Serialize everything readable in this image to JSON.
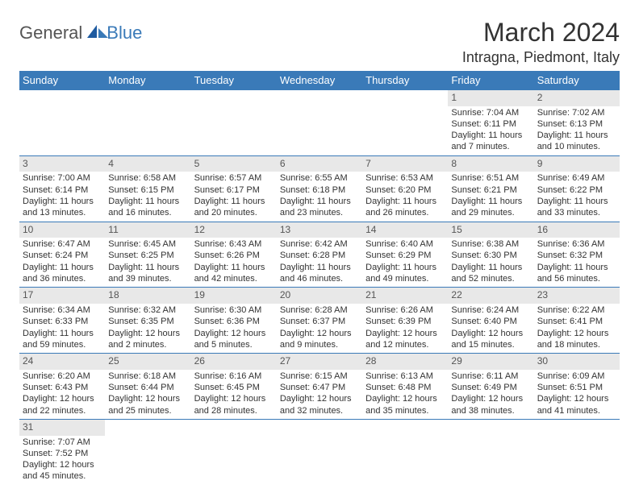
{
  "logo": {
    "part1": "General",
    "part2": "Blue"
  },
  "title": "March 2024",
  "location": "Intragna, Piedmont, Italy",
  "dayHeaders": [
    "Sunday",
    "Monday",
    "Tuesday",
    "Wednesday",
    "Thursday",
    "Friday",
    "Saturday"
  ],
  "colors": {
    "headerBg": "#3a7ab8",
    "headerText": "#ffffff",
    "daynumBg": "#e8e8e8",
    "text": "#333333",
    "border": "#3a7ab8"
  },
  "fonts": {
    "title_pt": 32,
    "location_pt": 18,
    "header_pt": 13,
    "daynum_pt": 12,
    "body_pt": 11
  },
  "weeks": [
    [
      null,
      null,
      null,
      null,
      null,
      {
        "n": "1",
        "sr": "Sunrise: 7:04 AM",
        "ss": "Sunset: 6:11 PM",
        "dl": "Daylight: 11 hours and 7 minutes."
      },
      {
        "n": "2",
        "sr": "Sunrise: 7:02 AM",
        "ss": "Sunset: 6:13 PM",
        "dl": "Daylight: 11 hours and 10 minutes."
      }
    ],
    [
      {
        "n": "3",
        "sr": "Sunrise: 7:00 AM",
        "ss": "Sunset: 6:14 PM",
        "dl": "Daylight: 11 hours and 13 minutes."
      },
      {
        "n": "4",
        "sr": "Sunrise: 6:58 AM",
        "ss": "Sunset: 6:15 PM",
        "dl": "Daylight: 11 hours and 16 minutes."
      },
      {
        "n": "5",
        "sr": "Sunrise: 6:57 AM",
        "ss": "Sunset: 6:17 PM",
        "dl": "Daylight: 11 hours and 20 minutes."
      },
      {
        "n": "6",
        "sr": "Sunrise: 6:55 AM",
        "ss": "Sunset: 6:18 PM",
        "dl": "Daylight: 11 hours and 23 minutes."
      },
      {
        "n": "7",
        "sr": "Sunrise: 6:53 AM",
        "ss": "Sunset: 6:20 PM",
        "dl": "Daylight: 11 hours and 26 minutes."
      },
      {
        "n": "8",
        "sr": "Sunrise: 6:51 AM",
        "ss": "Sunset: 6:21 PM",
        "dl": "Daylight: 11 hours and 29 minutes."
      },
      {
        "n": "9",
        "sr": "Sunrise: 6:49 AM",
        "ss": "Sunset: 6:22 PM",
        "dl": "Daylight: 11 hours and 33 minutes."
      }
    ],
    [
      {
        "n": "10",
        "sr": "Sunrise: 6:47 AM",
        "ss": "Sunset: 6:24 PM",
        "dl": "Daylight: 11 hours and 36 minutes."
      },
      {
        "n": "11",
        "sr": "Sunrise: 6:45 AM",
        "ss": "Sunset: 6:25 PM",
        "dl": "Daylight: 11 hours and 39 minutes."
      },
      {
        "n": "12",
        "sr": "Sunrise: 6:43 AM",
        "ss": "Sunset: 6:26 PM",
        "dl": "Daylight: 11 hours and 42 minutes."
      },
      {
        "n": "13",
        "sr": "Sunrise: 6:42 AM",
        "ss": "Sunset: 6:28 PM",
        "dl": "Daylight: 11 hours and 46 minutes."
      },
      {
        "n": "14",
        "sr": "Sunrise: 6:40 AM",
        "ss": "Sunset: 6:29 PM",
        "dl": "Daylight: 11 hours and 49 minutes."
      },
      {
        "n": "15",
        "sr": "Sunrise: 6:38 AM",
        "ss": "Sunset: 6:30 PM",
        "dl": "Daylight: 11 hours and 52 minutes."
      },
      {
        "n": "16",
        "sr": "Sunrise: 6:36 AM",
        "ss": "Sunset: 6:32 PM",
        "dl": "Daylight: 11 hours and 56 minutes."
      }
    ],
    [
      {
        "n": "17",
        "sr": "Sunrise: 6:34 AM",
        "ss": "Sunset: 6:33 PM",
        "dl": "Daylight: 11 hours and 59 minutes."
      },
      {
        "n": "18",
        "sr": "Sunrise: 6:32 AM",
        "ss": "Sunset: 6:35 PM",
        "dl": "Daylight: 12 hours and 2 minutes."
      },
      {
        "n": "19",
        "sr": "Sunrise: 6:30 AM",
        "ss": "Sunset: 6:36 PM",
        "dl": "Daylight: 12 hours and 5 minutes."
      },
      {
        "n": "20",
        "sr": "Sunrise: 6:28 AM",
        "ss": "Sunset: 6:37 PM",
        "dl": "Daylight: 12 hours and 9 minutes."
      },
      {
        "n": "21",
        "sr": "Sunrise: 6:26 AM",
        "ss": "Sunset: 6:39 PM",
        "dl": "Daylight: 12 hours and 12 minutes."
      },
      {
        "n": "22",
        "sr": "Sunrise: 6:24 AM",
        "ss": "Sunset: 6:40 PM",
        "dl": "Daylight: 12 hours and 15 minutes."
      },
      {
        "n": "23",
        "sr": "Sunrise: 6:22 AM",
        "ss": "Sunset: 6:41 PM",
        "dl": "Daylight: 12 hours and 18 minutes."
      }
    ],
    [
      {
        "n": "24",
        "sr": "Sunrise: 6:20 AM",
        "ss": "Sunset: 6:43 PM",
        "dl": "Daylight: 12 hours and 22 minutes."
      },
      {
        "n": "25",
        "sr": "Sunrise: 6:18 AM",
        "ss": "Sunset: 6:44 PM",
        "dl": "Daylight: 12 hours and 25 minutes."
      },
      {
        "n": "26",
        "sr": "Sunrise: 6:16 AM",
        "ss": "Sunset: 6:45 PM",
        "dl": "Daylight: 12 hours and 28 minutes."
      },
      {
        "n": "27",
        "sr": "Sunrise: 6:15 AM",
        "ss": "Sunset: 6:47 PM",
        "dl": "Daylight: 12 hours and 32 minutes."
      },
      {
        "n": "28",
        "sr": "Sunrise: 6:13 AM",
        "ss": "Sunset: 6:48 PM",
        "dl": "Daylight: 12 hours and 35 minutes."
      },
      {
        "n": "29",
        "sr": "Sunrise: 6:11 AM",
        "ss": "Sunset: 6:49 PM",
        "dl": "Daylight: 12 hours and 38 minutes."
      },
      {
        "n": "30",
        "sr": "Sunrise: 6:09 AM",
        "ss": "Sunset: 6:51 PM",
        "dl": "Daylight: 12 hours and 41 minutes."
      }
    ],
    [
      {
        "n": "31",
        "sr": "Sunrise: 7:07 AM",
        "ss": "Sunset: 7:52 PM",
        "dl": "Daylight: 12 hours and 45 minutes."
      },
      null,
      null,
      null,
      null,
      null,
      null
    ]
  ]
}
